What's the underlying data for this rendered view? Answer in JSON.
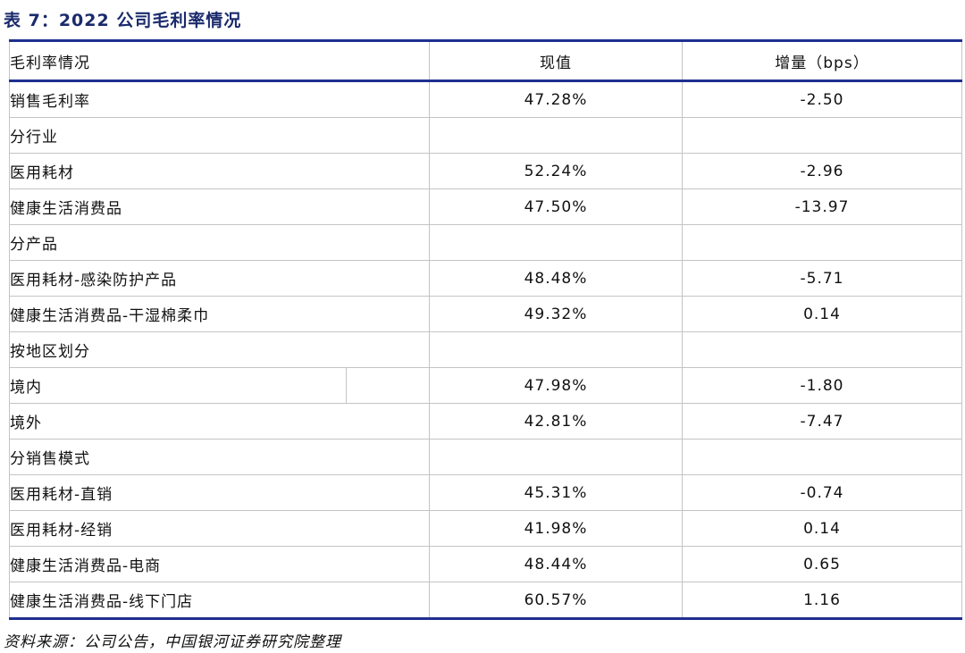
{
  "caption": "表 7：2022 公司毛利率情况",
  "table": {
    "headers": [
      "毛利率情况",
      "现值",
      "增量（bps）"
    ],
    "rows": [
      {
        "label": "销售毛利率",
        "value": "47.28%",
        "delta": "-2.50"
      },
      {
        "label": "分行业",
        "value": "",
        "delta": ""
      },
      {
        "label": "医用耗材",
        "value": "52.24%",
        "delta": "-2.96"
      },
      {
        "label": "健康生活消费品",
        "value": "47.50%",
        "delta": "-13.97"
      },
      {
        "label": "分产品",
        "value": "",
        "delta": ""
      },
      {
        "label": "医用耗材-感染防护产品",
        "value": "48.48%",
        "delta": "-5.71"
      },
      {
        "label": "健康生活消费品-干湿棉柔巾",
        "value": "49.32%",
        "delta": "0.14"
      },
      {
        "label": "按地区划分",
        "value": "",
        "delta": ""
      },
      {
        "label": "境内",
        "value": "47.98%",
        "delta": "-1.80"
      },
      {
        "label": "境外",
        "value": "42.81%",
        "delta": "-7.47"
      },
      {
        "label": "分销售模式",
        "value": "",
        "delta": ""
      },
      {
        "label": "医用耗材-直销",
        "value": "45.31%",
        "delta": "-0.74"
      },
      {
        "label": "医用耗材-经销",
        "value": "41.98%",
        "delta": "0.14"
      },
      {
        "label": "健康生活消费品-电商",
        "value": "48.44%",
        "delta": "0.65"
      },
      {
        "label": "健康生活消费品-线下门店",
        "value": "60.57%",
        "delta": "1.16"
      }
    ]
  },
  "source": "资料来源：公司公告，中国银河证券研究院整理",
  "colors": {
    "rule": "#1f2f8f",
    "caption": "#1a2a6c",
    "grid": "#c4c4c4"
  }
}
